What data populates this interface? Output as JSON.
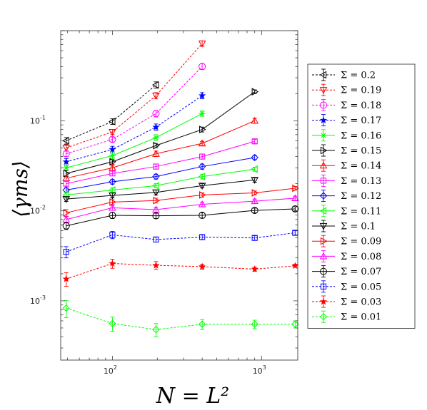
{
  "chart_data": {
    "type": "line",
    "title": "",
    "xlabel": "N = L²",
    "ylabel": "⟨γms⟩",
    "xscale": "log",
    "yscale": "log",
    "xlim": [
      45,
      1750
    ],
    "ylim": [
      0.00022,
      1.0
    ],
    "grid": false,
    "legend_position": "outside-right",
    "x_ticks": [
      {
        "value": 100,
        "base": "10",
        "exp": "2"
      },
      {
        "value": 1000,
        "base": "10",
        "exp": "3"
      }
    ],
    "y_ticks": [
      {
        "value": 0.001,
        "base": "10",
        "exp": "-3"
      },
      {
        "value": 0.01,
        "base": "10",
        "exp": "-2"
      },
      {
        "value": 0.1,
        "base": "10",
        "exp": "-1"
      }
    ],
    "series": [
      {
        "name": "Σ = 0.2",
        "color": "#000000",
        "dashed": true,
        "marker": "triangle-left",
        "x": [
          49,
          100,
          196
        ],
        "y": [
          0.06,
          0.098,
          0.25
        ],
        "err": [
          0.005,
          0.007,
          0.02
        ]
      },
      {
        "name": "Σ = 0.19",
        "color": "#ff0000",
        "dashed": true,
        "marker": "triangle-down",
        "x": [
          49,
          100,
          196,
          400
        ],
        "y": [
          0.05,
          0.075,
          0.19,
          0.72
        ],
        "err": [
          0.004,
          0.005,
          0.015,
          0.05
        ]
      },
      {
        "name": "Σ = 0.18",
        "color": "#ff00ff",
        "dashed": true,
        "marker": "circle",
        "x": [
          49,
          100,
          196,
          400
        ],
        "y": [
          0.043,
          0.062,
          0.12,
          0.4
        ],
        "err": [
          0.003,
          0.004,
          0.01,
          0.03
        ]
      },
      {
        "name": "Σ = 0.17",
        "color": "#0000ff",
        "dashed": true,
        "marker": "star",
        "x": [
          49,
          100,
          196,
          400
        ],
        "y": [
          0.035,
          0.048,
          0.085,
          0.19
        ],
        "err": [
          0.003,
          0.004,
          0.007,
          0.015
        ]
      },
      {
        "name": "Σ = 0.16",
        "color": "#00ff00",
        "dashed": false,
        "marker": "asterisk",
        "x": [
          49,
          100,
          196,
          400
        ],
        "y": [
          0.03,
          0.041,
          0.065,
          0.12
        ],
        "err": [
          0.002,
          0.003,
          0.005,
          0.008
        ]
      },
      {
        "name": "Σ = 0.15",
        "color": "#000000",
        "dashed": false,
        "marker": "triangle-right",
        "x": [
          49,
          100,
          196,
          400,
          900
        ],
        "y": [
          0.026,
          0.035,
          0.053,
          0.08,
          0.21
        ],
        "err": [
          0.002,
          0.002,
          0.003,
          0.005,
          0.01
        ]
      },
      {
        "name": "Σ = 0.14",
        "color": "#ff0000",
        "dashed": false,
        "marker": "triangle-up",
        "x": [
          49,
          100,
          196,
          400,
          900
        ],
        "y": [
          0.023,
          0.03,
          0.043,
          0.056,
          0.1
        ],
        "err": [
          0.0015,
          0.002,
          0.003,
          0.003,
          0.006
        ]
      },
      {
        "name": "Σ = 0.13",
        "color": "#ff00ff",
        "dashed": false,
        "marker": "square",
        "x": [
          49,
          100,
          196,
          400,
          900
        ],
        "y": [
          0.02,
          0.026,
          0.031,
          0.04,
          0.059
        ],
        "err": [
          0.0012,
          0.0015,
          0.002,
          0.0025,
          0.003
        ]
      },
      {
        "name": "Σ = 0.12",
        "color": "#0000ff",
        "dashed": false,
        "marker": "diamond",
        "x": [
          49,
          100,
          196,
          400,
          900
        ],
        "y": [
          0.017,
          0.021,
          0.024,
          0.031,
          0.039
        ],
        "err": [
          0.001,
          0.0012,
          0.0015,
          0.002,
          0.002
        ]
      },
      {
        "name": "Σ = 0.11",
        "color": "#00ff00",
        "dashed": false,
        "marker": "triangle-left",
        "x": [
          49,
          100,
          196,
          400,
          900
        ],
        "y": [
          0.015,
          0.017,
          0.019,
          0.024,
          0.029
        ],
        "err": [
          0.001,
          0.001,
          0.001,
          0.0015,
          0.0015
        ]
      },
      {
        "name": "Σ = 0.1",
        "color": "#000000",
        "dashed": false,
        "marker": "triangle-down",
        "x": [
          49,
          100,
          196,
          400,
          900
        ],
        "y": [
          0.0135,
          0.0148,
          0.016,
          0.019,
          0.022
        ],
        "err": [
          0.0008,
          0.0009,
          0.001,
          0.001,
          0.0012
        ]
      },
      {
        "name": "Σ = 0.09",
        "color": "#ff0000",
        "dashed": false,
        "marker": "triangle-right",
        "x": [
          49,
          100,
          196,
          400,
          900,
          1681
        ],
        "y": [
          0.0095,
          0.0125,
          0.013,
          0.015,
          0.0158,
          0.0178
        ],
        "err": [
          0.0008,
          0.0008,
          0.0008,
          0.0008,
          0.0008,
          0.0008
        ]
      },
      {
        "name": "Σ = 0.08",
        "color": "#ff00ff",
        "dashed": false,
        "marker": "triangle-up",
        "x": [
          49,
          100,
          196,
          400,
          900,
          1681
        ],
        "y": [
          0.008,
          0.0108,
          0.0103,
          0.0118,
          0.0128,
          0.0138
        ],
        "err": [
          0.0006,
          0.0007,
          0.0007,
          0.0007,
          0.0007,
          0.0007
        ]
      },
      {
        "name": "Σ = 0.07",
        "color": "#000000",
        "dashed": false,
        "marker": "circle",
        "x": [
          49,
          100,
          196,
          400,
          900,
          1681
        ],
        "y": [
          0.0068,
          0.0089,
          0.0088,
          0.0089,
          0.0101,
          0.0105
        ],
        "err": [
          0.0006,
          0.0007,
          0.0006,
          0.0006,
          0.0006,
          0.0006
        ]
      },
      {
        "name": "Σ = 0.05",
        "color": "#0000ff",
        "dashed": true,
        "marker": "square",
        "x": [
          49,
          100,
          196,
          400,
          900,
          1681
        ],
        "y": [
          0.0035,
          0.0054,
          0.0048,
          0.0051,
          0.005,
          0.0057
        ],
        "err": [
          0.0005,
          0.0005,
          0.0003,
          0.0003,
          0.0003,
          0.0003
        ]
      },
      {
        "name": "Σ = 0.03",
        "color": "#ff0000",
        "dashed": true,
        "marker": "star",
        "x": [
          49,
          100,
          196,
          400,
          900,
          1681
        ],
        "y": [
          0.00175,
          0.0026,
          0.00248,
          0.0024,
          0.00225,
          0.00245
        ],
        "err": [
          0.0003,
          0.0003,
          0.00025,
          0.00015,
          0.00012,
          0.0001
        ]
      },
      {
        "name": "Σ = 0.01",
        "color": "#00ff00",
        "dashed": true,
        "marker": "diamond",
        "x": [
          49,
          100,
          196,
          400,
          900,
          1681
        ],
        "y": [
          0.00083,
          0.00056,
          0.00048,
          0.00055,
          0.00055,
          0.00055
        ],
        "err": [
          0.00018,
          0.0001,
          8e-05,
          7e-05,
          6e-05,
          5e-05
        ]
      }
    ]
  }
}
